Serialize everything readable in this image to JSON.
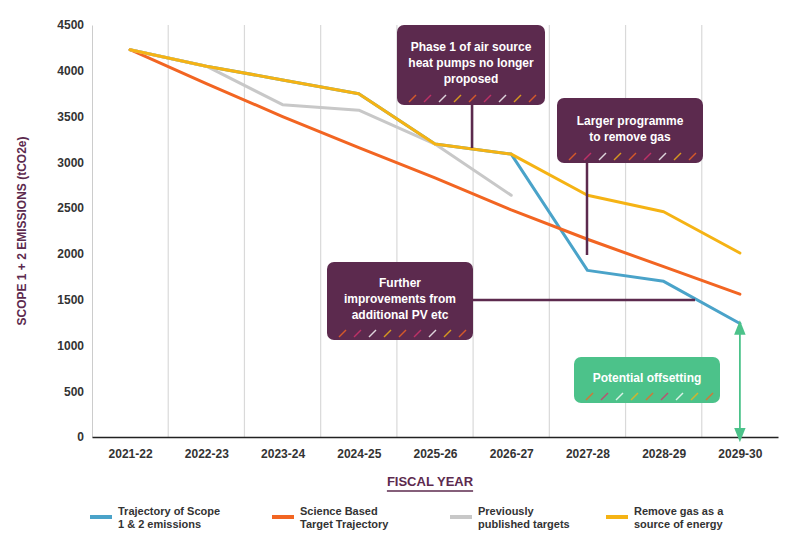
{
  "chart_data": {
    "type": "line",
    "xlabel": "FISCAL YEAR",
    "ylabel": "SCOPE 1 + 2 EMISSIONS (tCO2e)",
    "categories": [
      "2021-22",
      "2022-23",
      "2023-24",
      "2024-25",
      "2025-26",
      "2026-27",
      "2027-28",
      "2028-29",
      "2029-30"
    ],
    "series": [
      {
        "name": "Trajectory of Scope 1 & 2 emissions",
        "color": "#4aa3c9",
        "values": [
          4230,
          4050,
          3900,
          3750,
          3200,
          3090,
          1820,
          1700,
          1240
        ]
      },
      {
        "name": "Science Based Target Trajectory",
        "color": "#f26522",
        "values": [
          4230,
          3860,
          3500,
          3160,
          2830,
          2480,
          2160,
          1860,
          1560
        ]
      },
      {
        "name": "Previously published targets",
        "color": "#c8c8c8",
        "values": [
          4230,
          4050,
          3630,
          3570,
          3200,
          2640,
          null,
          null,
          null
        ]
      },
      {
        "name": "Remove gas as a source of energy",
        "color": "#f5b314",
        "values": [
          4230,
          4050,
          3900,
          3750,
          3200,
          3090,
          2640,
          2460,
          2010
        ]
      }
    ],
    "ylim": [
      0,
      4500
    ],
    "yticks": [
      0,
      500,
      1000,
      1500,
      2000,
      2500,
      3000,
      3500,
      4000,
      4500
    ],
    "grid": true,
    "legend": "bottom",
    "annotations": [
      {
        "text": "Phase 1 of air source heat pumps no longer proposed"
      },
      {
        "text": "Larger programme to remove gas"
      },
      {
        "text": "Further improvements from additional PV etc"
      },
      {
        "text": "Potential offsetting"
      }
    ]
  }
}
